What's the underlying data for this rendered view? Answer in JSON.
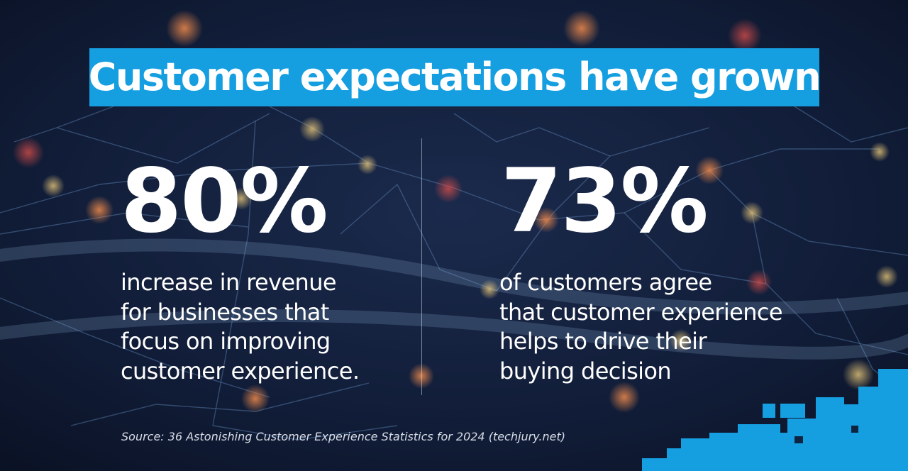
{
  "title": "Customer expectations have grown",
  "stats": [
    {
      "value": "80%",
      "lines": [
        "increase in revenue",
        "for businesses that",
        "focus on improving",
        "customer experience."
      ]
    },
    {
      "value": "73%",
      "lines": [
        "of customers agree",
        "that customer experience",
        "helps to drive their",
        "buying decision"
      ]
    }
  ],
  "source": "Source: 36 Astonishing Customer Experience Statistics for 2024 (techjury.net)",
  "colors": {
    "accent": "#159ee0",
    "background": "#0d1730",
    "text": "#ffffff"
  }
}
